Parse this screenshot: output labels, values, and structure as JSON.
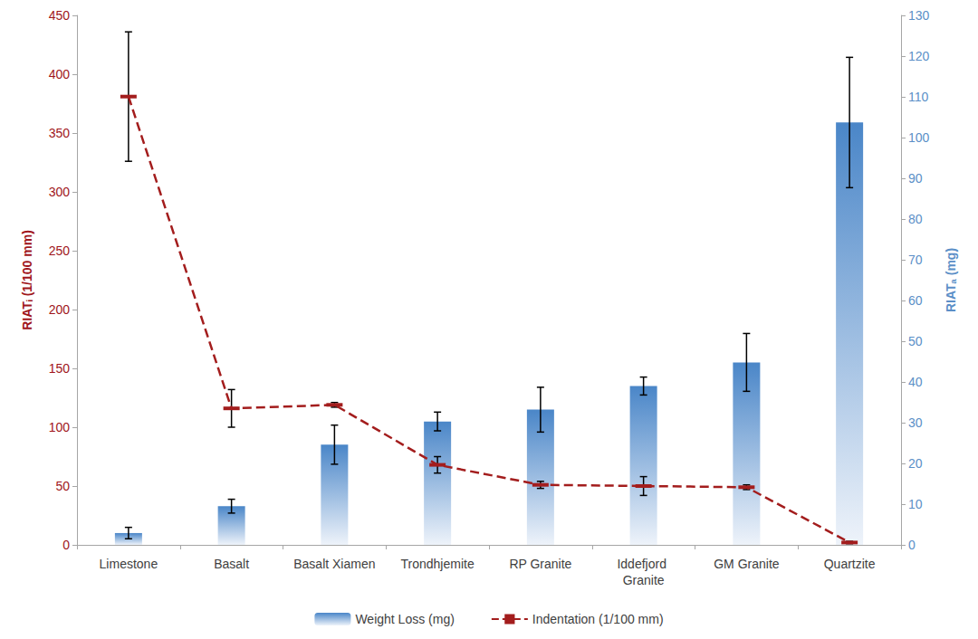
{
  "chart_data": {
    "type": "bar",
    "categories": [
      "Limestone",
      "Basalt",
      "Basalt Xiamen",
      "Trondhjemite",
      "RP Granite",
      "Iddefjord Granite",
      "GM Granite",
      "Quartzite"
    ],
    "series": [
      {
        "name": "Weight Loss (mg)",
        "type": "bar",
        "axis": "y2",
        "color": "#4a86c8",
        "values": [
          2.9,
          9.5,
          24.6,
          30.3,
          33.2,
          39.0,
          44.8,
          103.7
        ],
        "errors": [
          1.4,
          1.7,
          4.8,
          2.3,
          5.5,
          2.2,
          7.1,
          16.0
        ]
      },
      {
        "name": "Indentation (1/100 mm)",
        "type": "line",
        "color": "#a31d1d",
        "line_style": "dashed",
        "marker": "dash",
        "values": [
          381,
          116,
          119,
          68,
          51,
          50,
          49,
          2
        ],
        "errors": [
          55,
          16,
          2,
          7,
          3,
          8,
          2,
          1
        ]
      }
    ],
    "ylabel": "RIATᵢ (1/100 mm)",
    "y2label": "RIATₐ (mg)",
    "ylim": [
      0,
      450
    ],
    "yticks": [
      0,
      50,
      100,
      150,
      200,
      250,
      300,
      350,
      400,
      450
    ],
    "y2lim": [
      0,
      130
    ],
    "y2ticks": [
      0,
      10,
      20,
      30,
      40,
      50,
      60,
      70,
      80,
      90,
      100,
      110,
      120,
      130
    ],
    "grid": false,
    "legend": "bottom"
  }
}
